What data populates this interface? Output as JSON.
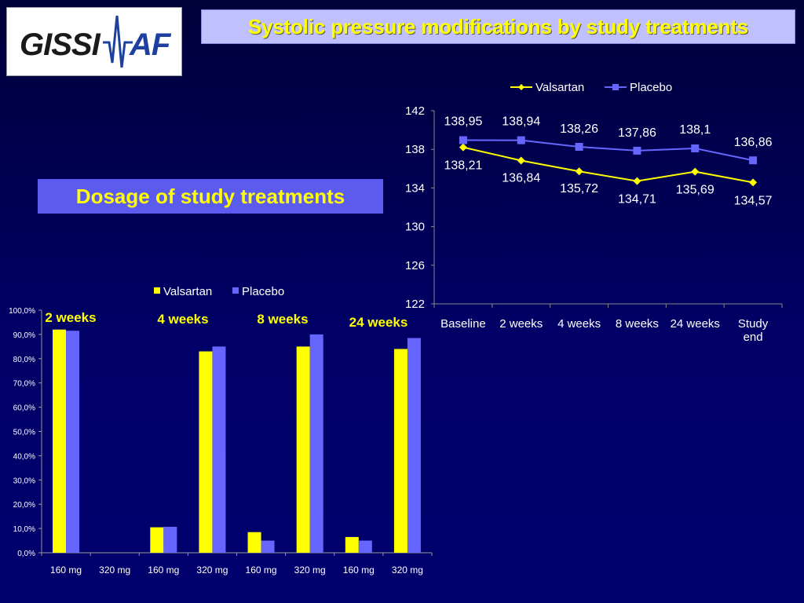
{
  "header": {
    "logo_text": "GISSI AF",
    "title": "Systolic pressure modifications by study treatments",
    "section_label": "Dosage of study treatments"
  },
  "colors": {
    "valsartan": "#ffff00",
    "placebo": "#6666ff",
    "text_accent": "#ffff00"
  },
  "chart_data": [
    {
      "type": "line",
      "categories": [
        "Baseline",
        "2 weeks",
        "4 weeks",
        "8 weeks",
        "24 weeks",
        "Study end"
      ],
      "ylim": [
        122,
        142
      ],
      "yticks": [
        "122",
        "126",
        "130",
        "134",
        "138",
        "142"
      ],
      "legend_position": "top",
      "series": [
        {
          "name": "Valsartan",
          "values": [
            138.21,
            136.84,
            135.72,
            134.71,
            135.69,
            134.57
          ],
          "labels": [
            "138,21",
            "136,84",
            "135,72",
            "134,71",
            "135,69",
            "134,57"
          ]
        },
        {
          "name": "Placebo",
          "values": [
            138.95,
            138.94,
            138.26,
            137.86,
            138.1,
            136.86
          ],
          "labels": [
            "138,95",
            "138,94",
            "138,26",
            "137,86",
            "138,1",
            "136,86"
          ]
        }
      ]
    },
    {
      "type": "bar",
      "categories": [
        "160 mg",
        "320 mg",
        "160 mg",
        "320 mg",
        "160 mg",
        "320 mg",
        "160 mg",
        "320 mg"
      ],
      "groups": [
        "2 weeks",
        "4 weeks",
        "8 weeks",
        "24 weeks"
      ],
      "ylim": [
        0,
        100
      ],
      "yticks": [
        "0,0%",
        "10,0%",
        "20,0%",
        "30,0%",
        "40,0%",
        "50,0%",
        "60,0%",
        "70,0%",
        "80,0%",
        "90,0%",
        "100,0%"
      ],
      "legend_position": "top",
      "series": [
        {
          "name": "Valsartan",
          "values": [
            92,
            0,
            10.5,
            83,
            8.5,
            85,
            6.5,
            84
          ]
        },
        {
          "name": "Placebo",
          "values": [
            91.5,
            0,
            10.7,
            85,
            5,
            90,
            5,
            88.5
          ]
        }
      ]
    }
  ]
}
